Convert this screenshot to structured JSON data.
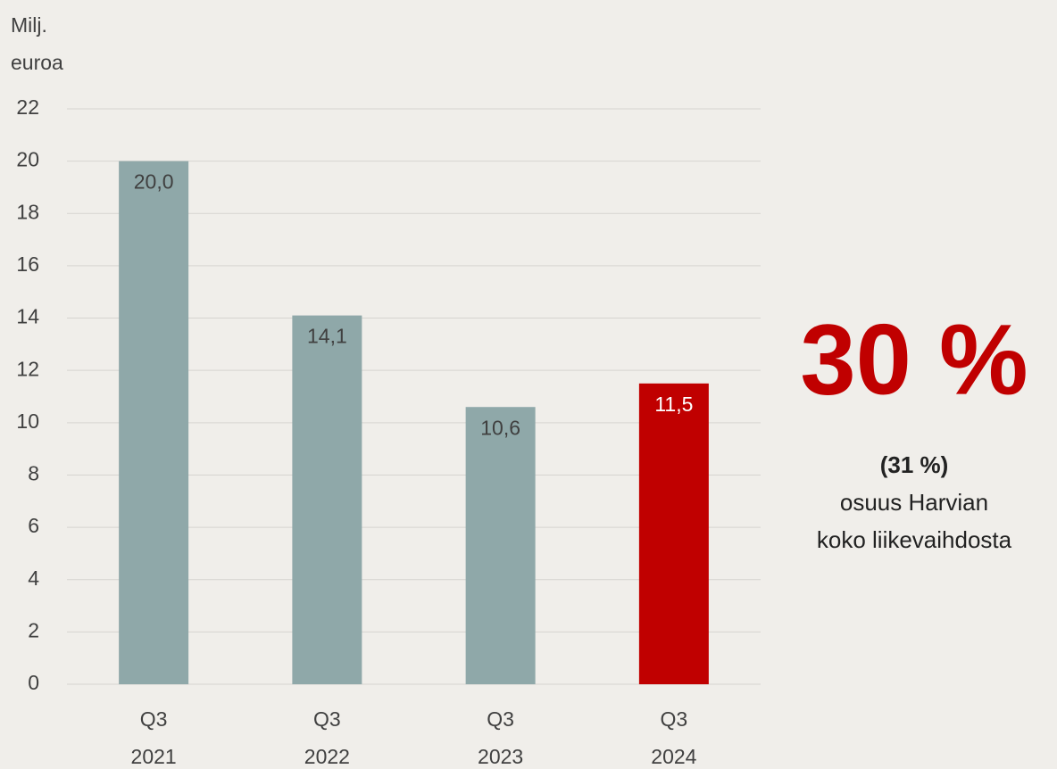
{
  "chart_data": {
    "type": "bar",
    "y_label": "Milj.\neuroa",
    "categories": [
      "Q3\n2021",
      "Q3\n2022",
      "Q3\n2023",
      "Q3\n2024"
    ],
    "values": [
      20.0,
      14.1,
      10.6,
      11.5
    ],
    "value_labels": [
      "20,0",
      "14,1",
      "10,6",
      "11,5"
    ],
    "colors": [
      "#8fa8a9",
      "#8fa8a9",
      "#8fa8a9",
      "#c00000"
    ],
    "label_colors": [
      "#404040",
      "#404040",
      "#404040",
      "#ffffff"
    ],
    "ylim": [
      0,
      22
    ],
    "yticks": [
      0,
      2,
      4,
      6,
      8,
      10,
      12,
      14,
      16,
      18,
      20,
      22
    ],
    "grid": true,
    "annotations": [
      "30 %",
      "(31 %)",
      "osuus Harvian",
      "koko liikevaihdosta"
    ]
  }
}
